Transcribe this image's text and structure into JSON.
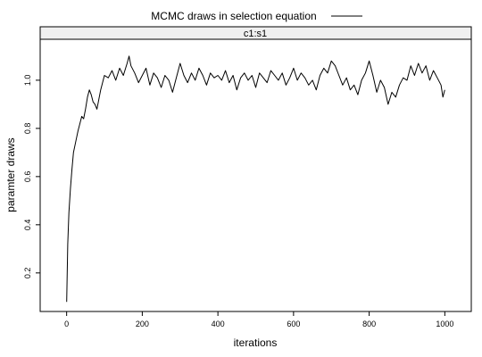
{
  "chart_data": {
    "type": "line",
    "title": "MCMC draws in selection equation",
    "panel_label": "c1:s1",
    "xlabel": "iterations",
    "ylabel": "paramter draws",
    "xlim": [
      -70,
      1070
    ],
    "ylim": [
      0.04,
      1.17
    ],
    "x_ticks": [
      0,
      200,
      400,
      600,
      800,
      1000
    ],
    "y_ticks": [
      0.2,
      0.4,
      0.6,
      0.8,
      1.0
    ],
    "x_tick_labels": [
      "0",
      "200",
      "400",
      "600",
      "800",
      "1000"
    ],
    "y_tick_labels": [
      "0.2",
      "0.4",
      "0.6",
      "0.8",
      "1.0"
    ],
    "legend": {
      "position": "top",
      "entries": [
        "MCMC draws in selection equation"
      ]
    },
    "line_color": "#000000",
    "strip_color": "#f0f0f0",
    "grid": false,
    "series": [
      {
        "x": [
          0,
          3,
          6,
          10,
          14,
          18,
          22,
          26,
          30,
          35,
          40,
          45,
          50,
          55,
          60,
          65,
          70,
          75,
          80,
          85,
          90,
          95,
          100,
          110,
          120,
          130,
          140,
          150,
          160,
          165,
          170,
          180,
          190,
          200,
          210,
          220,
          230,
          240,
          250,
          260,
          270,
          280,
          290,
          300,
          310,
          320,
          330,
          340,
          350,
          360,
          370,
          380,
          390,
          400,
          410,
          420,
          430,
          440,
          450,
          460,
          470,
          480,
          490,
          500,
          510,
          520,
          530,
          540,
          550,
          560,
          570,
          580,
          590,
          600,
          610,
          620,
          630,
          640,
          650,
          660,
          670,
          680,
          690,
          700,
          710,
          720,
          730,
          740,
          750,
          760,
          770,
          780,
          790,
          800,
          810,
          820,
          830,
          840,
          850,
          860,
          870,
          880,
          890,
          900,
          910,
          920,
          930,
          940,
          950,
          960,
          970,
          980,
          990,
          995,
          1000
        ],
        "y": [
          0.08,
          0.32,
          0.45,
          0.55,
          0.63,
          0.7,
          0.73,
          0.76,
          0.79,
          0.82,
          0.85,
          0.84,
          0.88,
          0.93,
          0.96,
          0.94,
          0.91,
          0.9,
          0.88,
          0.92,
          0.96,
          0.99,
          1.02,
          1.01,
          1.04,
          1.0,
          1.05,
          1.02,
          1.07,
          1.1,
          1.06,
          1.03,
          0.99,
          1.02,
          1.05,
          0.98,
          1.03,
          1.01,
          0.97,
          1.02,
          1.0,
          0.95,
          1.01,
          1.07,
          1.02,
          0.99,
          1.03,
          1.0,
          1.05,
          1.02,
          0.98,
          1.03,
          1.01,
          1.02,
          1.0,
          1.04,
          0.99,
          1.02,
          0.96,
          1.01,
          1.03,
          1.0,
          1.02,
          0.97,
          1.03,
          1.01,
          0.99,
          1.04,
          1.02,
          1.0,
          1.03,
          0.98,
          1.01,
          1.05,
          1.0,
          1.03,
          1.01,
          0.98,
          1.0,
          0.96,
          1.02,
          1.05,
          1.03,
          1.08,
          1.06,
          1.02,
          0.98,
          1.01,
          0.96,
          0.98,
          0.94,
          1.0,
          1.03,
          1.08,
          1.02,
          0.95,
          1.0,
          0.97,
          0.9,
          0.95,
          0.93,
          0.98,
          1.01,
          1.0,
          1.06,
          1.02,
          1.07,
          1.03,
          1.06,
          1.0,
          1.04,
          1.01,
          0.98,
          0.93,
          0.96
        ]
      }
    ]
  }
}
